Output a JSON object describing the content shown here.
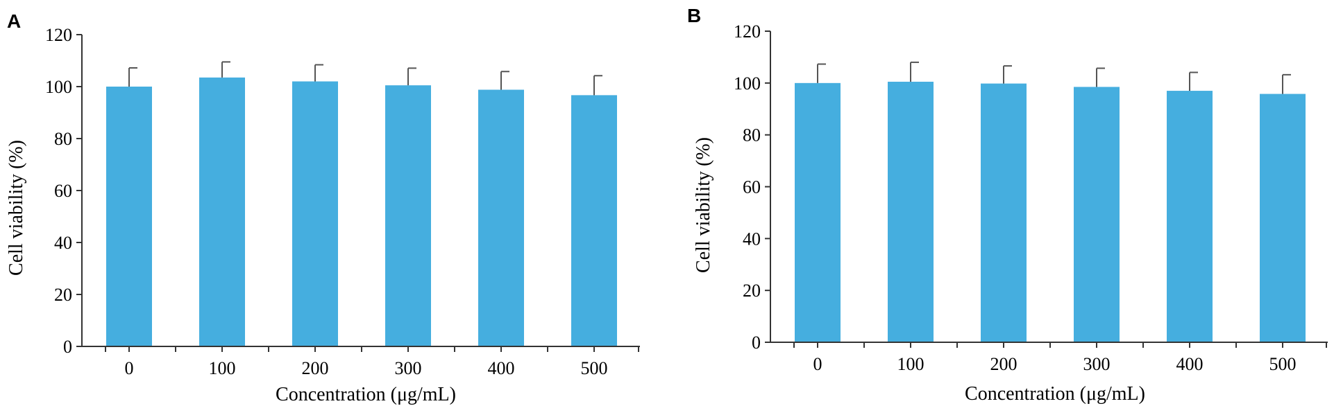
{
  "chart_data": [
    {
      "panel": "A",
      "type": "bar",
      "categories": [
        "0",
        "100",
        "200",
        "300",
        "400",
        "500"
      ],
      "values": [
        100,
        103.5,
        102,
        100.5,
        98.8,
        96.7
      ],
      "errors": [
        7.2,
        6.0,
        6.4,
        6.6,
        7.0,
        7.5
      ],
      "xlabel": "Concentration (μg/mL)",
      "ylabel": "Cell viability (%)",
      "ylim": [
        0,
        120
      ],
      "yticks": [
        "0",
        "20",
        "40",
        "60",
        "80",
        "100",
        "120"
      ],
      "grid": false,
      "bar_color": "#45aedf"
    },
    {
      "panel": "B",
      "type": "bar",
      "categories": [
        "0",
        "100",
        "200",
        "300",
        "400",
        "500"
      ],
      "values": [
        100,
        100.5,
        99.8,
        98.5,
        97,
        95.8
      ],
      "errors": [
        7.3,
        7.5,
        6.8,
        7.2,
        7.1,
        7.4
      ],
      "xlabel": "Concentration (μg/mL)",
      "ylabel": "Cell viability (%)",
      "ylim": [
        0,
        120
      ],
      "yticks": [
        "0",
        "20",
        "40",
        "60",
        "80",
        "100",
        "120"
      ],
      "grid": false,
      "bar_color": "#45aedf"
    }
  ]
}
